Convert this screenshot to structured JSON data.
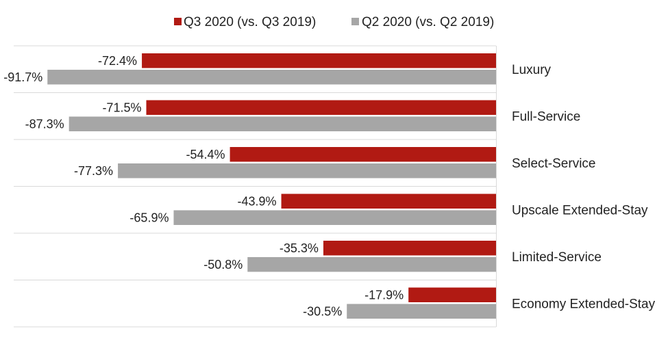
{
  "chart_data": {
    "type": "bar",
    "orientation": "horizontal",
    "title": "",
    "xlabel": "",
    "ylabel": "",
    "categories": [
      "Luxury",
      "Full-Service",
      "Select-Service",
      "Upscale Extended-Stay",
      "Limited-Service",
      "Economy Extended-Stay"
    ],
    "series": [
      {
        "name": "Q3 2020 (vs. Q3 2019)",
        "color": "#b11a13",
        "values": [
          -72.4,
          -71.5,
          -54.4,
          -43.9,
          -35.3,
          -17.9
        ],
        "labels": [
          "-72.4%",
          "-71.5%",
          "-54.4%",
          "-43.9%",
          "-35.3%",
          "-17.9%"
        ]
      },
      {
        "name": "Q2 2020 (vs. Q2 2019)",
        "color": "#a6a6a6",
        "values": [
          -91.7,
          -87.3,
          -77.3,
          -65.9,
          -50.8,
          -30.5
        ],
        "labels": [
          "-91.7%",
          "-87.3%",
          "-77.3%",
          "-65.9%",
          "-50.8%",
          "-30.5%"
        ]
      }
    ],
    "value_axis": {
      "min": -100,
      "max": 0,
      "visible": false
    },
    "grid": true,
    "legend_position": "top"
  }
}
